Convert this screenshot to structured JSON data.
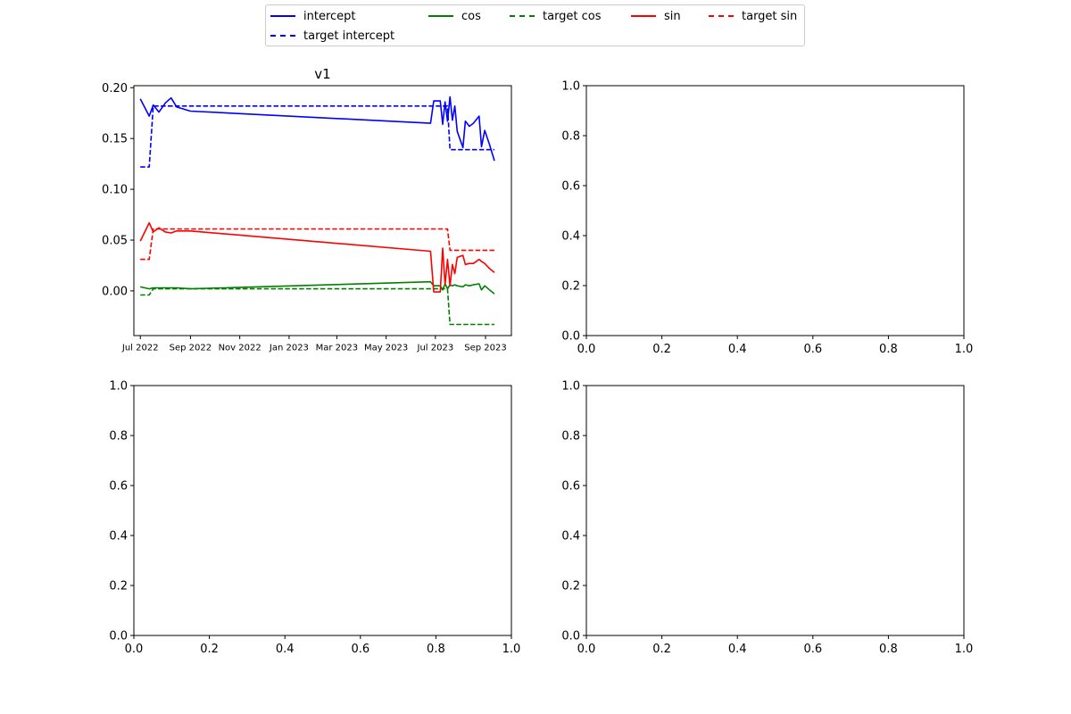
{
  "legend": {
    "entries": [
      {
        "label": "intercept",
        "color": "#0000ff",
        "style": "solid"
      },
      {
        "label": "target intercept",
        "color": "#0000ff",
        "style": "dashed"
      },
      {
        "label": "cos",
        "color": "#008000",
        "style": "solid"
      },
      {
        "label": "target cos",
        "color": "#008000",
        "style": "dashed"
      },
      {
        "label": "sin",
        "color": "#ff0000",
        "style": "solid"
      },
      {
        "label": "target sin",
        "color": "#ff0000",
        "style": "dashed"
      }
    ]
  },
  "chart_data": [
    {
      "type": "line",
      "title": "v1",
      "xlabel": "",
      "ylabel": "",
      "x_type": "date",
      "xlim": [
        "2022-06-23",
        "2023-10-03"
      ],
      "ylim": [
        -0.044,
        0.202
      ],
      "xticks": [
        {
          "date": "2022-07-01",
          "label": "Jul 2022"
        },
        {
          "date": "2022-09-01",
          "label": "Sep 2022"
        },
        {
          "date": "2022-11-01",
          "label": "Nov 2022"
        },
        {
          "date": "2023-01-01",
          "label": "Jan 2023"
        },
        {
          "date": "2023-03-01",
          "label": "Mar 2023"
        },
        {
          "date": "2023-05-01",
          "label": "May 2023"
        },
        {
          "date": "2023-07-01",
          "label": "Jul 2023"
        },
        {
          "date": "2023-09-01",
          "label": "Sep 2023"
        }
      ],
      "yticks": [
        0.0,
        0.05,
        0.1,
        0.15,
        0.2
      ],
      "ytick_labels": [
        "0.00",
        "0.05",
        "0.10",
        "0.15",
        "0.20"
      ],
      "legend": "top-center",
      "series": [
        {
          "name": "intercept",
          "color": "#0000ff",
          "style": "solid",
          "x": [
            "2022-07-01",
            "2022-07-12",
            "2022-07-17",
            "2022-07-24",
            "2022-08-01",
            "2022-08-08",
            "2022-08-15",
            "2022-09-01",
            "2023-06-25",
            "2023-06-29",
            "2023-07-07",
            "2023-07-10",
            "2023-07-13",
            "2023-07-16",
            "2023-07-19",
            "2023-07-22",
            "2023-07-25",
            "2023-07-28",
            "2023-08-04",
            "2023-08-07",
            "2023-08-12",
            "2023-08-17",
            "2023-08-24",
            "2023-08-27",
            "2023-08-31",
            "2023-09-06",
            "2023-09-12"
          ],
          "y": [
            0.189,
            0.172,
            0.183,
            0.176,
            0.185,
            0.19,
            0.181,
            0.177,
            0.165,
            0.187,
            0.187,
            0.164,
            0.186,
            0.167,
            0.191,
            0.168,
            0.182,
            0.157,
            0.141,
            0.167,
            0.162,
            0.165,
            0.172,
            0.142,
            0.158,
            0.144,
            0.128
          ]
        },
        {
          "name": "target intercept",
          "color": "#0000ff",
          "style": "dashed",
          "x": [
            "2022-07-01",
            "2022-07-12",
            "2022-07-17",
            "2023-07-16",
            "2023-07-19",
            "2023-09-12"
          ],
          "y": [
            0.122,
            0.122,
            0.182,
            0.182,
            0.139,
            0.139
          ]
        },
        {
          "name": "cos",
          "color": "#008000",
          "style": "solid",
          "x": [
            "2022-07-01",
            "2022-07-12",
            "2022-07-17",
            "2022-08-15",
            "2022-09-01",
            "2023-06-25",
            "2023-06-29",
            "2023-07-07",
            "2023-07-10",
            "2023-07-13",
            "2023-07-16",
            "2023-07-19",
            "2023-07-22",
            "2023-07-25",
            "2023-07-28",
            "2023-08-04",
            "2023-08-07",
            "2023-08-12",
            "2023-08-17",
            "2023-08-24",
            "2023-08-27",
            "2023-08-31",
            "2023-09-06",
            "2023-09-12"
          ],
          "y": [
            0.004,
            0.002,
            0.003,
            0.003,
            0.002,
            0.009,
            0.005,
            0.005,
            0.001,
            0.007,
            0.002,
            0.006,
            0.005,
            0.006,
            0.005,
            0.004,
            0.006,
            0.005,
            0.006,
            0.007,
            0.001,
            0.005,
            0.001,
            -0.003
          ]
        },
        {
          "name": "target cos",
          "color": "#008000",
          "style": "dashed",
          "x": [
            "2022-07-01",
            "2022-07-12",
            "2022-07-17",
            "2023-07-16",
            "2023-07-19",
            "2023-09-12"
          ],
          "y": [
            -0.004,
            -0.004,
            0.002,
            0.002,
            -0.033,
            -0.033
          ]
        },
        {
          "name": "sin",
          "color": "#ff0000",
          "style": "solid",
          "x": [
            "2022-07-01",
            "2022-07-12",
            "2022-07-17",
            "2022-07-24",
            "2022-08-01",
            "2022-08-08",
            "2022-08-15",
            "2022-09-01",
            "2023-06-25",
            "2023-06-29",
            "2023-07-07",
            "2023-07-10",
            "2023-07-13",
            "2023-07-16",
            "2023-07-19",
            "2023-07-22",
            "2023-07-25",
            "2023-07-28",
            "2023-08-04",
            "2023-08-07",
            "2023-08-12",
            "2023-08-17",
            "2023-08-24",
            "2023-08-27",
            "2023-08-31",
            "2023-09-06",
            "2023-09-12"
          ],
          "y": [
            0.049,
            0.067,
            0.058,
            0.062,
            0.058,
            0.057,
            0.059,
            0.059,
            0.039,
            -0.001,
            -0.001,
            0.042,
            0.006,
            0.031,
            0.005,
            0.026,
            0.017,
            0.033,
            0.035,
            0.026,
            0.027,
            0.027,
            0.031,
            0.029,
            0.027,
            0.022,
            0.018
          ]
        },
        {
          "name": "target sin",
          "color": "#ff0000",
          "style": "dashed",
          "x": [
            "2022-07-01",
            "2022-07-12",
            "2022-07-17",
            "2023-07-16",
            "2023-07-19",
            "2023-09-12"
          ],
          "y": [
            0.031,
            0.031,
            0.061,
            0.061,
            0.04,
            0.04
          ]
        }
      ]
    },
    {
      "type": "line",
      "title": "",
      "xlim": [
        0,
        1
      ],
      "ylim": [
        0,
        1
      ],
      "xticks": [
        0.0,
        0.2,
        0.4,
        0.6,
        0.8,
        1.0
      ],
      "xtick_labels": [
        "0.0",
        "0.2",
        "0.4",
        "0.6",
        "0.8",
        "1.0"
      ],
      "yticks": [
        0.0,
        0.2,
        0.4,
        0.6,
        0.8,
        1.0
      ],
      "ytick_labels": [
        "0.0",
        "0.2",
        "0.4",
        "0.6",
        "0.8",
        "1.0"
      ],
      "series": []
    },
    {
      "type": "line",
      "title": "",
      "xlim": [
        0,
        1
      ],
      "ylim": [
        0,
        1
      ],
      "xticks": [
        0.0,
        0.2,
        0.4,
        0.6,
        0.8,
        1.0
      ],
      "xtick_labels": [
        "0.0",
        "0.2",
        "0.4",
        "0.6",
        "0.8",
        "1.0"
      ],
      "yticks": [
        0.0,
        0.2,
        0.4,
        0.6,
        0.8,
        1.0
      ],
      "ytick_labels": [
        "0.0",
        "0.2",
        "0.4",
        "0.6",
        "0.8",
        "1.0"
      ],
      "series": []
    },
    {
      "type": "line",
      "title": "",
      "xlim": [
        0,
        1
      ],
      "ylim": [
        0,
        1
      ],
      "xticks": [
        0.0,
        0.2,
        0.4,
        0.6,
        0.8,
        1.0
      ],
      "xtick_labels": [
        "0.0",
        "0.2",
        "0.4",
        "0.6",
        "0.8",
        "1.0"
      ],
      "yticks": [
        0.0,
        0.2,
        0.4,
        0.6,
        0.8,
        1.0
      ],
      "ytick_labels": [
        "0.0",
        "0.2",
        "0.4",
        "0.6",
        "0.8",
        "1.0"
      ],
      "series": []
    }
  ]
}
